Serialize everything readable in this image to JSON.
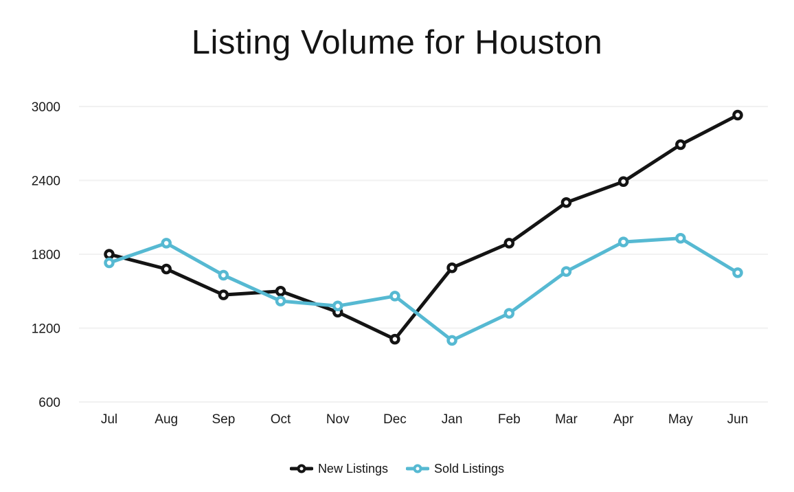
{
  "chart_data": {
    "type": "line",
    "title": "Listing Volume for Houston",
    "categories": [
      "Jul",
      "Aug",
      "Sep",
      "Oct",
      "Nov",
      "Dec",
      "Jan",
      "Feb",
      "Mar",
      "Apr",
      "May",
      "Jun"
    ],
    "series": [
      {
        "name": "New Listings",
        "color": "#141414",
        "values": [
          1800,
          1680,
          1470,
          1500,
          1330,
          1110,
          1690,
          1890,
          2220,
          2390,
          2690,
          2930
        ]
      },
      {
        "name": "Sold Listings",
        "color": "#56b9d2",
        "values": [
          1730,
          1890,
          1630,
          1420,
          1380,
          1460,
          1100,
          1320,
          1660,
          1900,
          1930,
          1650
        ]
      }
    ],
    "yticks": [
      600,
      1200,
      1800,
      2400,
      3000
    ],
    "ylim": [
      600,
      3000
    ],
    "xlabel": "",
    "ylabel": "",
    "grid": "horizontal",
    "gridline_color": "#f1f1f1",
    "legend_position": "bottom",
    "marker": "hollow-circle",
    "background": "#ffffff"
  }
}
